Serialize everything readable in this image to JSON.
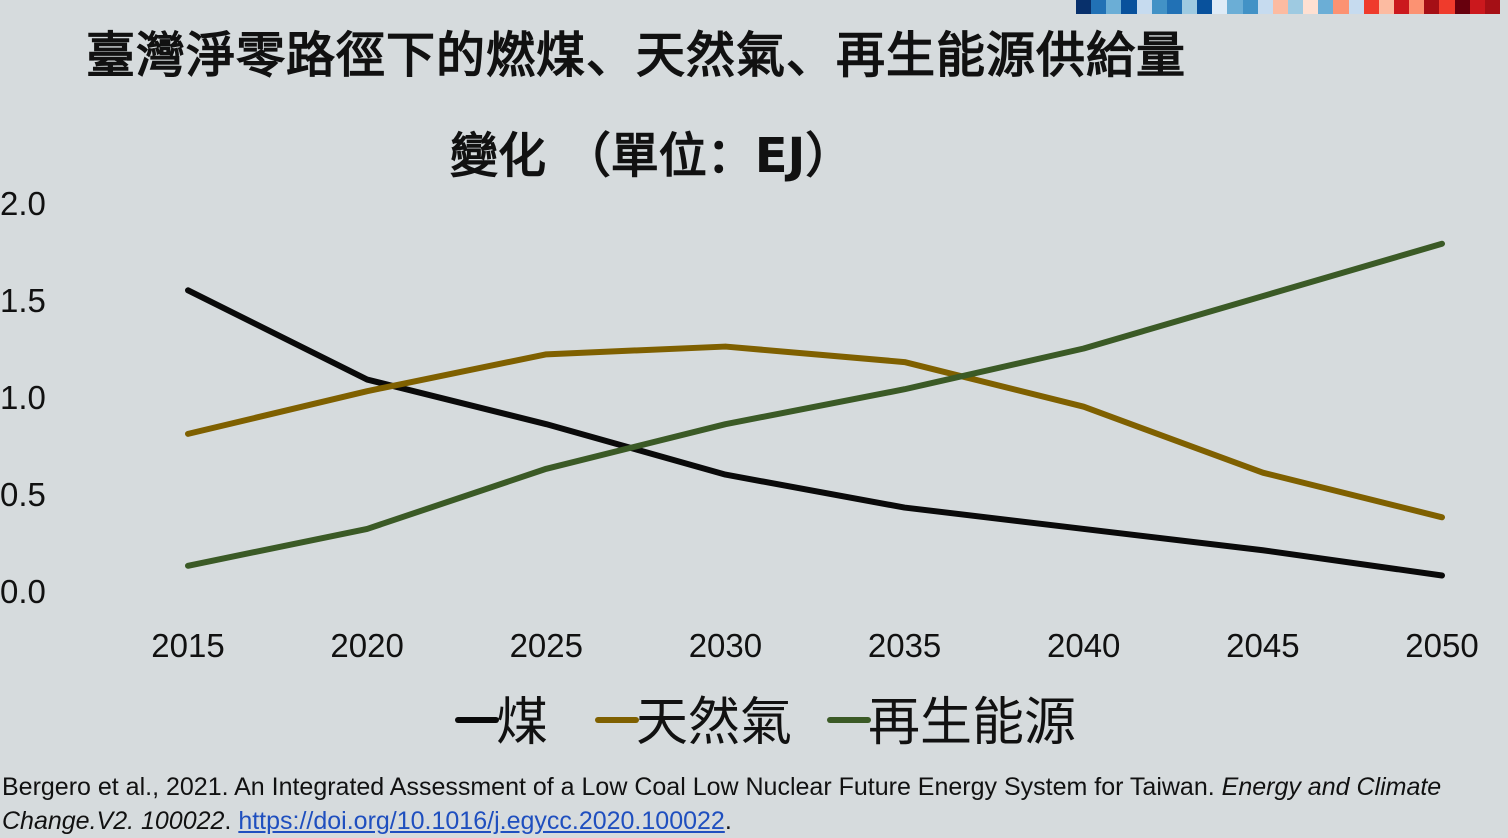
{
  "chart_data": {
    "type": "line",
    "title": "臺灣淨零路徑下的燃煤、天然氣、再生能源供給量",
    "subtitle": "變化 （單位：EJ）",
    "xlabel": "",
    "ylabel": "",
    "x": [
      "2015",
      "2020",
      "2025",
      "2030",
      "2035",
      "2040",
      "2045",
      "2050"
    ],
    "ylim": [
      0,
      2.0
    ],
    "yticks": [
      "0.0",
      "0.5",
      "1.0",
      "1.5",
      "2.0"
    ],
    "grid": false,
    "legend": "bottom",
    "series": [
      {
        "name": "煤",
        "color": "#0a0a0a",
        "values": [
          1.55,
          1.09,
          0.86,
          0.6,
          0.43,
          0.32,
          0.21,
          0.08
        ]
      },
      {
        "name": "天然氣",
        "color": "#7f6000",
        "values": [
          0.81,
          1.03,
          1.22,
          1.26,
          1.18,
          0.95,
          0.61,
          0.38
        ]
      },
      {
        "name": "再生能源",
        "color": "#3b5a26",
        "values": [
          0.13,
          0.32,
          0.63,
          0.86,
          1.04,
          1.25,
          1.52,
          1.79
        ]
      }
    ]
  },
  "citation": {
    "text": "Bergero et al., 2021. An Integrated Assessment of a Low Coal Low Nuclear Future Energy System for Taiwan. ",
    "journal": "Energy and Climate Change.V2. 100022",
    "sep": ". ",
    "link": "https://doi.org/10.1016/j.egycc.2020.100022",
    "end": "."
  },
  "stripe_colors": [
    "#08306b",
    "#2171b5",
    "#6baed6",
    "#08519c",
    "#c6dbef",
    "#4292c6",
    "#2171b5",
    "#9ecae1",
    "#08519c",
    "#deebf7",
    "#6baed6",
    "#4292c6",
    "#c6dbef",
    "#fcbba1",
    "#9ecae1",
    "#fee0d2",
    "#6baed6",
    "#fc9272",
    "#c6dbef",
    "#ef3b2c",
    "#fcbba1",
    "#cb181d",
    "#fc9272",
    "#a50f15",
    "#ef3b2c",
    "#67000d",
    "#cb181d",
    "#a50f15"
  ]
}
